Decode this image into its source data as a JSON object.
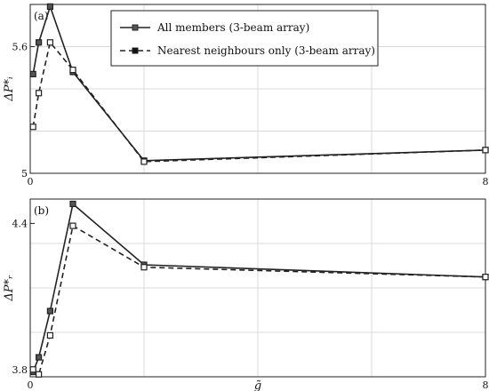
{
  "chart_data": [
    {
      "type": "line",
      "panel_label": "(a)",
      "ylabel": "ΔP*ᵢ",
      "xlabel": "",
      "xlim": [
        0,
        8
      ],
      "ylim": [
        5.0,
        5.8
      ],
      "xticks": [
        0,
        8
      ],
      "yticks": [
        5,
        5.6
      ],
      "ytick_labels": [
        "5",
        "5.6"
      ],
      "xtick_labels": [
        "0",
        "8"
      ],
      "grid": true,
      "legend_position": "top-right",
      "series": [
        {
          "name": "All members (3-beam array)",
          "style": "solid",
          "marker": "filled-square",
          "x": [
            0.05,
            0.15,
            0.35,
            0.75,
            2.0,
            8.0
          ],
          "y": [
            5.47,
            5.62,
            5.79,
            5.48,
            5.06,
            5.11
          ]
        },
        {
          "name": "Nearest neighbours only (3-beam array)",
          "style": "dashed",
          "marker": "open-square",
          "x": [
            0.05,
            0.15,
            0.35,
            0.75,
            2.0,
            8.0
          ],
          "y": [
            5.22,
            5.38,
            5.62,
            5.49,
            5.055,
            5.11
          ]
        }
      ]
    },
    {
      "type": "line",
      "panel_label": "(b)",
      "ylabel": "ΔP*ᵣ",
      "xlabel": "g̃",
      "xlim": [
        0,
        8
      ],
      "ylim": [
        3.77,
        4.5
      ],
      "xticks": [
        0,
        8
      ],
      "yticks": [
        3.8,
        4.4
      ],
      "ytick_labels": [
        "3.8",
        "4.4"
      ],
      "xtick_labels": [
        "0",
        "8"
      ],
      "grid": true,
      "series": [
        {
          "name": "All members (3-beam array)",
          "style": "solid",
          "marker": "filled-square",
          "x": [
            0.05,
            0.15,
            0.35,
            0.75,
            2.0,
            8.0
          ],
          "y": [
            3.79,
            3.85,
            4.04,
            4.48,
            4.23,
            4.18
          ]
        },
        {
          "name": "Nearest neighbours only (3-beam array)",
          "style": "dashed",
          "marker": "open-square",
          "x": [
            0.05,
            0.15,
            0.35,
            0.75,
            2.0,
            8.0
          ],
          "y": [
            3.8,
            3.78,
            3.94,
            4.39,
            4.22,
            4.18
          ]
        }
      ]
    }
  ]
}
